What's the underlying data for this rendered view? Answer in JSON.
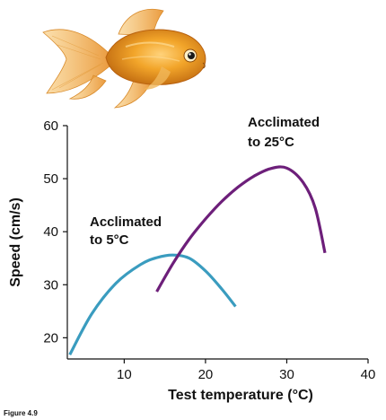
{
  "figure_label": "Figure 4.9",
  "colors": {
    "cold": "#3a9cbf",
    "warm": "#6d1f7a",
    "axis": "#111111"
  },
  "illustration": "goldfish",
  "chart_data": {
    "type": "line",
    "xlabel": "Test temperature (°C)",
    "ylabel": "Speed (cm/s)",
    "xlim": [
      3,
      40
    ],
    "ylim": [
      16,
      60
    ],
    "xticks": [
      10,
      20,
      30,
      40
    ],
    "yticks": [
      20,
      30,
      40,
      50,
      60
    ],
    "grid": false,
    "legend": "none (direct labels)",
    "series": [
      {
        "name": "Acclimated to 5°C",
        "label_lines": [
          "Acclimated",
          "to 5°C"
        ],
        "color": "#3a9cbf",
        "x": [
          3.3,
          6,
          9,
          12,
          14,
          16,
          18,
          20,
          22,
          23.7
        ],
        "y": [
          16.8,
          24.5,
          30.3,
          33.8,
          35.1,
          35.6,
          35.0,
          32.6,
          29.2,
          25.9
        ]
      },
      {
        "name": "Acclimated to 25°C",
        "label_lines": [
          "Acclimated",
          "to 25°C"
        ],
        "color": "#6d1f7a",
        "x": [
          14,
          16,
          18,
          20,
          22,
          24,
          26,
          28,
          30,
          32,
          33.5,
          34.7
        ],
        "y": [
          28.7,
          34.0,
          38.6,
          42.4,
          45.7,
          48.4,
          50.5,
          51.9,
          52.0,
          49.3,
          44.5,
          36.0
        ]
      }
    ]
  }
}
